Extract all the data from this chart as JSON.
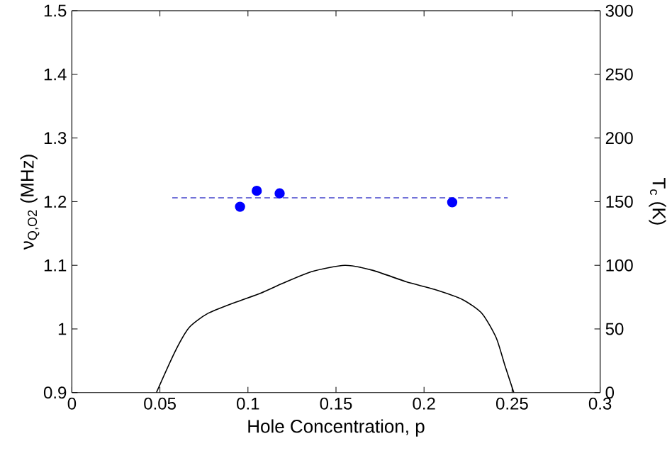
{
  "chart_data": {
    "type": "scatter",
    "xlabel": "Hole Concentration, p",
    "ylabel": "ν$_{Q,O2}$ (MHz)",
    "y2label": "T$_{c}$ (K)",
    "xlim": [
      0,
      0.3
    ],
    "xticks": [
      0,
      0.05,
      0.1,
      0.15,
      0.2,
      0.25,
      0.3
    ],
    "ylim": [
      0.9,
      1.5
    ],
    "yticks": [
      0.9,
      1,
      1.1,
      1.2,
      1.3,
      1.4,
      1.5
    ],
    "y2lim": [
      0,
      300
    ],
    "y2ticks": [
      0,
      50,
      100,
      150,
      200,
      250,
      300
    ],
    "grid": false,
    "series": [
      {
        "type": "line",
        "color": "#4444cc",
        "line_style": "dashed",
        "marker": "none",
        "x": [
          0.057,
          0.2475
        ],
        "values": [
          1.206,
          1.206
        ]
      },
      {
        "color": "#0000ff",
        "marker": "circle",
        "x": [
          0.0955,
          0.105,
          0.118,
          0.216
        ],
        "values": [
          1.192,
          1.217,
          1.213,
          1.199
        ]
      },
      {
        "type": "line",
        "axis": "y2",
        "color": "#000000",
        "line_style": "solid",
        "marker": "none",
        "x": [
          0.048,
          0.0585,
          0.0665,
          0.077,
          0.093,
          0.107,
          0.12,
          0.136,
          0.155,
          0.171,
          0.19,
          0.206,
          0.222,
          0.233,
          0.241,
          0.246,
          0.251
        ],
        "values": [
          0,
          32,
          51,
          62,
          71,
          78,
          86,
          95,
          100,
          96,
          87,
          81,
          73,
          62,
          43,
          21,
          0
        ]
      }
    ]
  }
}
